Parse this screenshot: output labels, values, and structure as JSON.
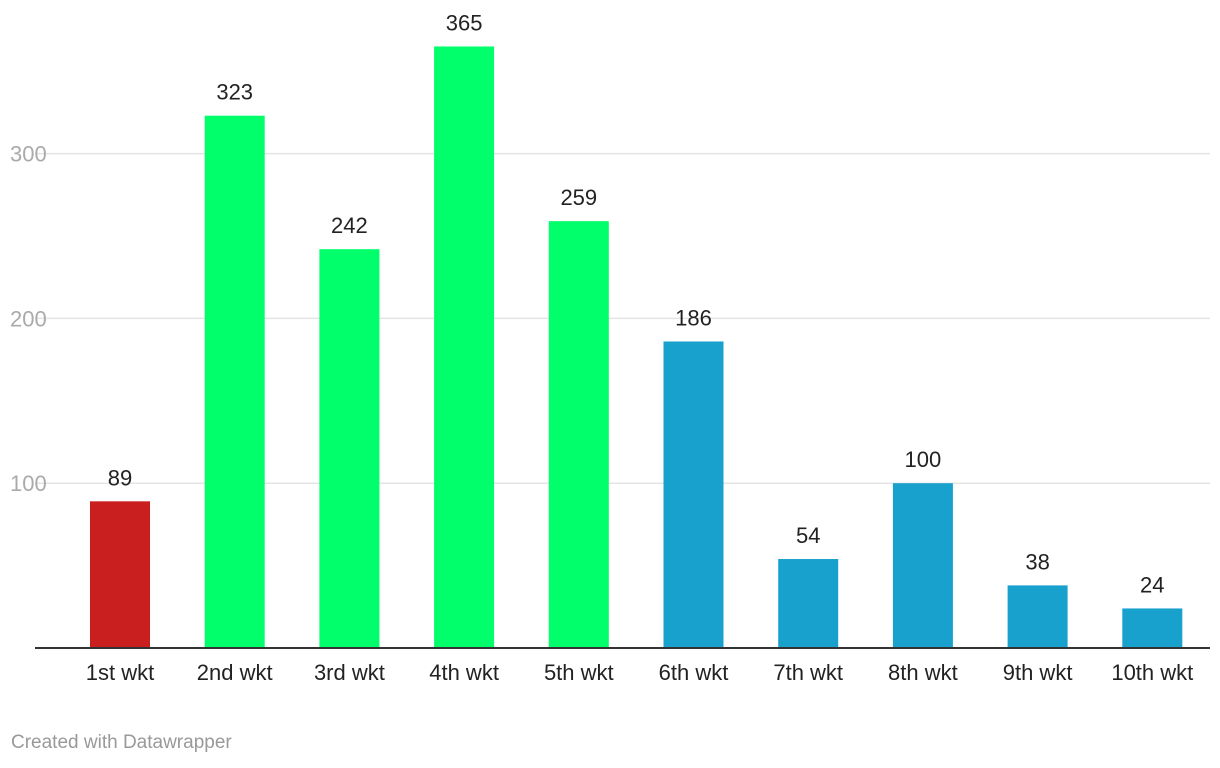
{
  "chart_data": {
    "type": "bar",
    "categories": [
      "1st wkt",
      "2nd wkt",
      "3rd wkt",
      "4th wkt",
      "5th wkt",
      "6th wkt",
      "7th wkt",
      "8th wkt",
      "9th wkt",
      "10th wkt"
    ],
    "values": [
      89,
      323,
      242,
      365,
      259,
      186,
      54,
      100,
      38,
      24
    ],
    "colors": [
      "#c91f1f",
      "#00ff6a",
      "#00ff6a",
      "#00ff6a",
      "#00ff6a",
      "#18a1cd",
      "#18a1cd",
      "#18a1cd",
      "#18a1cd",
      "#18a1cd"
    ],
    "yticks": [
      100,
      200,
      300
    ],
    "ylim": [
      0,
      365
    ],
    "grid": true,
    "data_labels": true
  },
  "footer": {
    "credit": "Created with Datawrapper"
  }
}
